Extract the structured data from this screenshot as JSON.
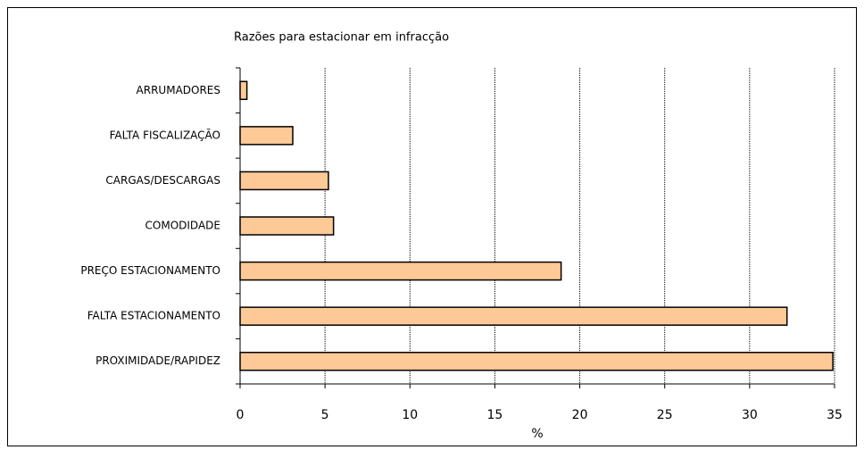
{
  "chart_data": {
    "type": "barh",
    "title": "Razões para estacionar em infracção",
    "x_label": "%",
    "categories": [
      "ARRUMADORES",
      "FALTA FISCALIZAÇÃO",
      "CARGAS/DESCARGAS",
      "COMODIDADE",
      "PREÇO ESTACIONAMENTO",
      "FALTA ESTACIONAMENTO",
      "PROXIMIDADE/RAPIDEZ"
    ],
    "values": [
      0.4,
      3.1,
      5.2,
      5.5,
      18.9,
      32.2,
      34.9
    ],
    "color": "#fdc996",
    "xlim": [
      0,
      35
    ],
    "xticks": [
      0,
      5,
      10,
      15,
      20,
      25,
      30,
      35
    ],
    "grid": true
  }
}
